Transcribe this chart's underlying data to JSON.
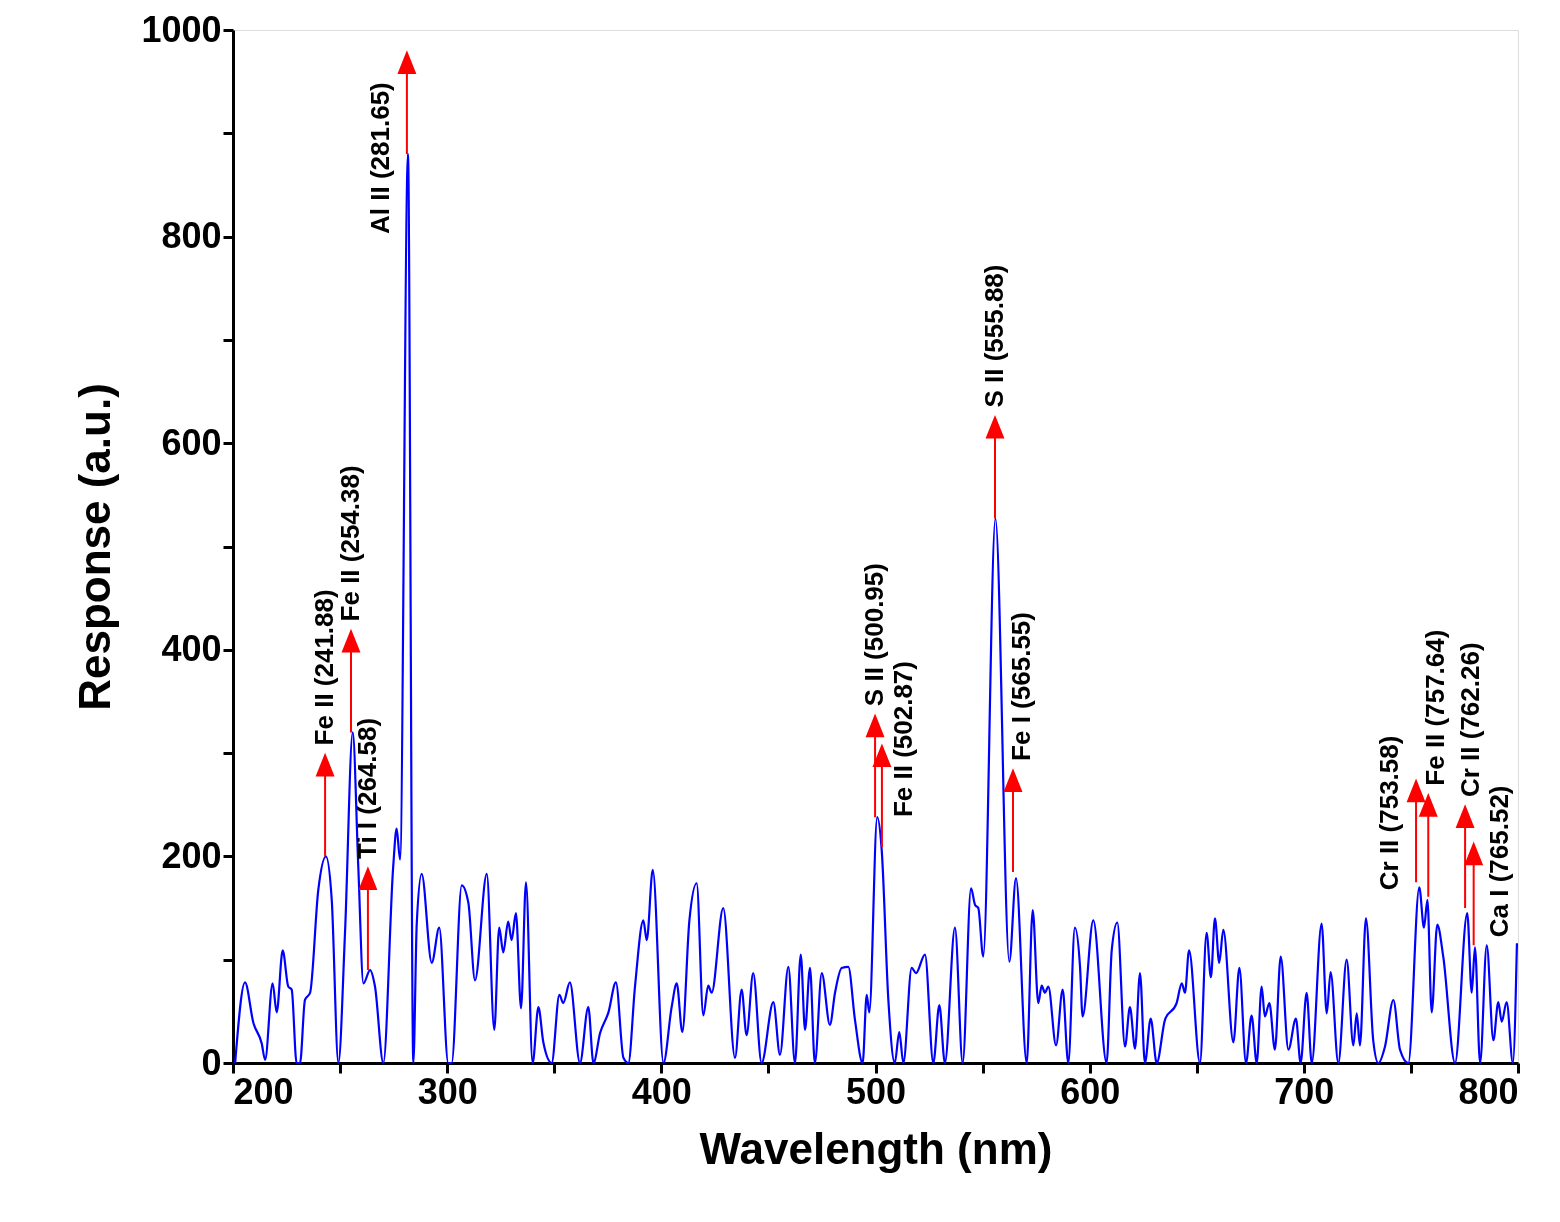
{
  "chart_data": {
    "type": "line",
    "xlabel": "Wavelength (nm)",
    "ylabel": "Response (a.u.)",
    "xlim": [
      200,
      800
    ],
    "xticks": [
      200,
      {
        "value": 250,
        "label": null
      },
      300,
      {
        "value": 350,
        "label": null
      },
      400,
      {
        "value": 450,
        "label": null
      },
      500,
      {
        "value": 550,
        "label": null
      },
      600,
      {
        "value": 650,
        "label": null
      },
      700,
      {
        "value": 750,
        "label": null
      },
      800
    ],
    "ylim": [
      0,
      1000
    ],
    "yticks": [
      0,
      {
        "value": 100,
        "label": null
      },
      200,
      {
        "value": 300,
        "label": null
      },
      400,
      {
        "value": 500,
        "label": null
      },
      600,
      {
        "value": 700,
        "label": null
      },
      800,
      {
        "value": 900,
        "label": null
      },
      1000
    ],
    "x": [
      201,
      205.6,
      209.5,
      213.4,
      215,
      218.5,
      220.4,
      223.2,
      225.8,
      227.4,
      229.7,
      231.3,
      233.6,
      236,
      239.8,
      243.4,
      246.1,
      249.2,
      252.3,
      255.9,
      258.5,
      260.9,
      264,
      266.3,
      270.2,
      274.8,
      276.4,
      278,
      281.7,
      284.2,
      285.8,
      288.1,
      292.8,
      296.3,
      300.5,
      302.1,
      306.8,
      309.9,
      313,
      318.5,
      322,
      324.3,
      326.2,
      328.5,
      330.1,
      332.1,
      334.5,
      336.8,
      339.9,
      342.6,
      344.9,
      348.8,
      352.4,
      354.2,
      357.3,
      362,
      365.9,
      368.3,
      371.4,
      375.3,
      378.8,
      382.3,
      384.6,
      387.7,
      391.6,
      393.2,
      396,
      401,
      404.8,
      407.2,
      409.8,
      413.1,
      416.5,
      419.6,
      421.9,
      423.5,
      428.9,
      434.4,
      437.5,
      439.8,
      442.9,
      446.8,
      452.3,
      455.4,
      459.3,
      462.4,
      465.1,
      467.1,
      469.4,
      471.7,
      474.9,
      478.7,
      481.1,
      484.2,
      487.3,
      490.4,
      494,
      495.9,
      497.1,
      500.8,
      502.9,
      506,
      509,
      511.1,
      513,
      516.9,
      518.9,
      523.1,
      527,
      529.8,
      532.4,
      537.1,
      540.7,
      544.6,
      546.5,
      548,
      550.3,
      556,
      562.5,
      565.6,
      570.6,
      573.4,
      576,
      577.6,
      579.1,
      580.7,
      584.3,
      587.4,
      590,
      593.1,
      595.5,
      596.7,
      601.7,
      607.9,
      610.3,
      612.9,
      616.5,
      618.8,
      621.2,
      623.5,
      625.8,
      628.5,
      631.3,
      635.2,
      640.6,
      643,
      644.5,
      646.4,
      651.5,
      654.6,
      656.6,
      658.5,
      660.5,
      662.4,
      667.1,
      669.9,
      673,
      675.6,
      678,
      680.3,
      681.8,
      683.9,
      686.5,
      689.2,
      692.8,
      696.3,
      698.5,
      701.3,
      703.7,
      708.3,
      710.7,
      712.5,
      716.1,
      720,
      723.1,
      724.7,
      726.2,
      729,
      732.4,
      734.8,
      737.9,
      741.8,
      744.9,
      748.8,
      753.9,
      756.1,
      757.7,
      759.7,
      762.3,
      765.1,
      770.6,
      776.3,
      778.4,
      779.9,
      782.3,
      785.4,
      788.5,
      790.8,
      792.4,
      794.7,
      797.6,
      799.5
    ],
    "series": [
      {
        "color": "#0000ff",
        "values": [
          0,
          78,
          39,
          19,
          3,
          77,
          49,
          109,
          74,
          71,
          0,
          0,
          61,
          68,
          167,
          200,
          158,
          0,
          126,
          320,
          190,
          77,
          90,
          74,
          0,
          190,
          227,
          197,
          880,
          0,
          135,
          183,
          97,
          131,
          0,
          0,
          172,
          155,
          80,
          183,
          32,
          131,
          107,
          137,
          119,
          145,
          53,
          175,
          0,
          54,
          20,
          0,
          66,
          58,
          78,
          0,
          54,
          0,
          29,
          49,
          78,
          5,
          0,
          74,
          138,
          119,
          187,
          0,
          54,
          77,
          30,
          138,
          174,
          46,
          75,
          68,
          150,
          5,
          71,
          27,
          87,
          0,
          59,
          8,
          93,
          0,
          105,
          32,
          92,
          0,
          87,
          37,
          68,
          92,
          93,
          42,
          0,
          66,
          49,
          238,
          206,
          61,
          0,
          30,
          0,
          92,
          87,
          105,
          0,
          56,
          0,
          131,
          0,
          169,
          153,
          150,
          103,
          527,
          98,
          179,
          0,
          148,
          58,
          75,
          68,
          74,
          17,
          71,
          0,
          131,
          93,
          45,
          138,
          0,
          109,
          136,
          16,
          54,
          14,
          87,
          0,
          43,
          0,
          42,
          58,
          77,
          68,
          109,
          0,
          126,
          83,
          140,
          97,
          129,
          20,
          92,
          0,
          46,
          0,
          74,
          45,
          58,
          13,
          103,
          13,
          43,
          0,
          68,
          0,
          135,
          48,
          88,
          0,
          100,
          17,
          48,
          17,
          140,
          22,
          0,
          16,
          61,
          13,
          0,
          170,
          131,
          158,
          49,
          134,
          103,
          0,
          145,
          68,
          112,
          0,
          114,
          22,
          59,
          40,
          59,
          0,
          116
        ]
      }
    ],
    "annotations": [
      {
        "text": "Fe II (241.88)",
        "x": 243,
        "y": 200
      },
      {
        "text": "Fe II (254.38)",
        "x": 255.1,
        "y": 320
      },
      {
        "text": "Ti I (264.58)",
        "x": 263,
        "y": 90
      },
      {
        "text": "Al II (281.65)",
        "x": 281.2,
        "y": 880
      },
      {
        "text": "S II (500.95)",
        "x": 499.8,
        "y": 238
      },
      {
        "text": "Fe II (502.87)",
        "x": 503,
        "y": 209
      },
      {
        "text": "S II (555.88)",
        "x": 555.8,
        "y": 527
      },
      {
        "text": "Fe I (565.55)",
        "x": 564.2,
        "y": 185
      },
      {
        "text": "Cr II (753.58)",
        "x": 752.4,
        "y": 175
      },
      {
        "text": "Fe II (757.64)",
        "x": 758.1,
        "y": 161
      },
      {
        "text": "Cr II (762.26)",
        "x": 775.3,
        "y": 150
      },
      {
        "text": "Ca I (765.52)",
        "x": 779.3,
        "y": 114
      }
    ]
  }
}
